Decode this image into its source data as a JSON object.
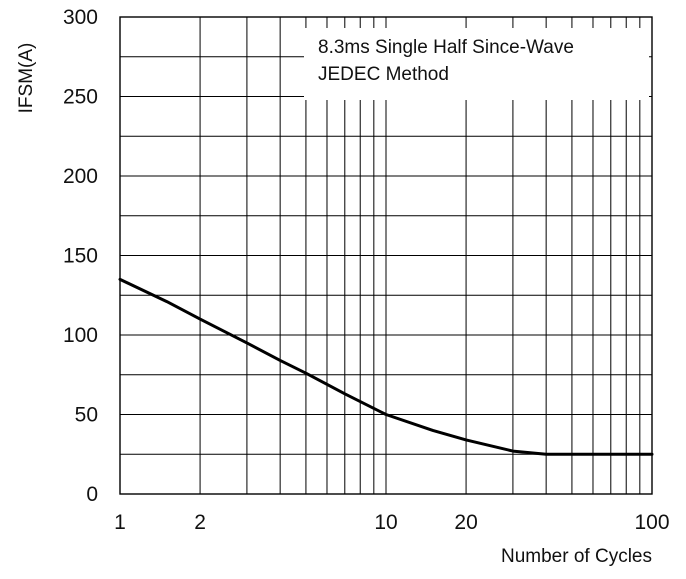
{
  "chart_data": {
    "type": "line",
    "title": "",
    "xlabel": "Number of Cycles",
    "ylabel": "IFSM(A)",
    "x_scale": "log",
    "xlim": [
      1,
      100
    ],
    "ylim": [
      0,
      300
    ],
    "x_tick_labels": [
      "1",
      "2",
      "10",
      "20",
      "100"
    ],
    "x_tick_values": [
      1,
      2,
      10,
      20,
      100
    ],
    "y_tick_labels": [
      "0",
      "50",
      "100",
      "150",
      "200",
      "250",
      "300"
    ],
    "y_tick_values": [
      0,
      50,
      100,
      150,
      200,
      250,
      300
    ],
    "grid": true,
    "annotation": {
      "line1": "8.3ms Single Half Since-Wave",
      "line2": "JEDEC Method"
    },
    "series": [
      {
        "x": [
          1,
          1.5,
          2,
          3,
          4,
          5,
          7,
          10,
          15,
          20,
          30,
          40,
          50,
          70,
          100
        ],
        "y": [
          135,
          121,
          110,
          95,
          84,
          76,
          63,
          50,
          40,
          34,
          27,
          25,
          25,
          25,
          25
        ]
      }
    ],
    "colors": {
      "line": "#000000",
      "grid": "#000000"
    }
  }
}
